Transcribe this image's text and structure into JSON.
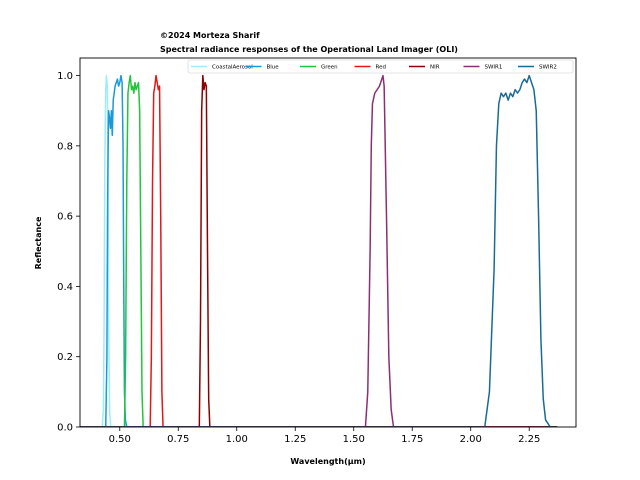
{
  "chart_data": {
    "type": "line",
    "copyright": "©2024 Morteza Sharif",
    "title": "Spectral radiance responses of the Operational Land Imager (OLI)",
    "xlabel": "Wavelength(μm)",
    "ylabel": "Reflectance",
    "xlim": [
      0.33,
      2.45
    ],
    "ylim": [
      0,
      1.05
    ],
    "xticks": [
      0.5,
      0.75,
      1.0,
      1.25,
      1.5,
      1.75,
      2.0,
      2.25
    ],
    "xtick_labels": [
      "0.50",
      "0.75",
      "1.00",
      "1.25",
      "1.50",
      "1.75",
      "2.00",
      "2.25"
    ],
    "yticks": [
      0,
      0.2,
      0.4,
      0.6,
      0.8,
      1.0
    ],
    "ytick_labels": [
      "0.0",
      "0.2",
      "0.4",
      "0.6",
      "0.8",
      "1.0"
    ],
    "grid": false,
    "legend": {
      "placement": "top",
      "columns": 7
    },
    "series": [
      {
        "name": "CoastalAerosol",
        "color": "#9eecf7",
        "x": [
          0.3,
          0.425,
          0.43,
          0.433,
          0.436,
          0.44,
          0.443,
          0.447,
          0.45,
          0.453,
          0.457,
          0.462,
          2.37
        ],
        "y": [
          0,
          0,
          0.05,
          0.3,
          0.75,
          0.96,
          1.0,
          0.97,
          0.7,
          0.25,
          0.04,
          0,
          0
        ]
      },
      {
        "name": "Blue",
        "color": "#1a9ad6",
        "x": [
          0.3,
          0.44,
          0.445,
          0.448,
          0.452,
          0.456,
          0.46,
          0.464,
          0.468,
          0.472,
          0.476,
          0.48,
          0.485,
          0.49,
          0.495,
          0.5,
          0.505,
          0.51,
          0.514,
          0.517,
          0.52,
          0.524,
          0.53,
          2.37
        ],
        "y": [
          0,
          0,
          0.2,
          0.65,
          0.9,
          0.88,
          0.85,
          0.9,
          0.83,
          0.93,
          0.95,
          0.97,
          0.98,
          0.99,
          0.97,
          0.98,
          1.0,
          0.98,
          0.8,
          0.4,
          0.1,
          0.02,
          0,
          0
        ]
      },
      {
        "name": "Green",
        "color": "#22c43a",
        "x": [
          0.3,
          0.52,
          0.525,
          0.53,
          0.535,
          0.54,
          0.545,
          0.55,
          0.555,
          0.56,
          0.565,
          0.57,
          0.575,
          0.58,
          0.585,
          0.59,
          0.595,
          0.6,
          2.37
        ],
        "y": [
          0,
          0,
          0.2,
          0.7,
          0.95,
          0.98,
          1.0,
          0.96,
          0.97,
          0.95,
          0.98,
          0.96,
          0.97,
          0.98,
          0.9,
          0.5,
          0.1,
          0,
          0
        ]
      },
      {
        "name": "Red",
        "color": "#e01818",
        "x": [
          0.3,
          0.63,
          0.635,
          0.64,
          0.645,
          0.65,
          0.655,
          0.66,
          0.665,
          0.67,
          0.675,
          0.68,
          0.685,
          2.37
        ],
        "y": [
          0,
          0,
          0.2,
          0.7,
          0.95,
          0.97,
          1.0,
          0.98,
          0.96,
          0.97,
          0.6,
          0.1,
          0,
          0
        ]
      },
      {
        "name": "NIR",
        "color": "#8b0000",
        "x": [
          0.3,
          0.84,
          0.845,
          0.85,
          0.855,
          0.86,
          0.865,
          0.87,
          0.875,
          0.88,
          0.885,
          2.37
        ],
        "y": [
          0,
          0,
          0.3,
          0.9,
          1.0,
          0.96,
          0.98,
          0.97,
          0.5,
          0.08,
          0,
          0
        ]
      },
      {
        "name": "SWIR1",
        "color": "#8b2f74",
        "x": [
          0.3,
          1.55,
          1.56,
          1.57,
          1.575,
          1.58,
          1.59,
          1.6,
          1.61,
          1.62,
          1.625,
          1.63,
          1.64,
          1.65,
          1.66,
          1.67,
          2.37
        ],
        "y": [
          0,
          0,
          0.1,
          0.5,
          0.8,
          0.92,
          0.95,
          0.96,
          0.97,
          0.99,
          1.0,
          0.97,
          0.6,
          0.2,
          0.05,
          0,
          0
        ]
      },
      {
        "name": "SWIR2",
        "color": "#1a6b94",
        "x": [
          0.3,
          2.06,
          2.08,
          2.1,
          2.11,
          2.12,
          2.13,
          2.14,
          2.15,
          2.16,
          2.17,
          2.18,
          2.19,
          2.2,
          2.21,
          2.22,
          2.23,
          2.24,
          2.25,
          2.26,
          2.27,
          2.28,
          2.29,
          2.3,
          2.31,
          2.32,
          2.34,
          2.37
        ],
        "y": [
          0,
          0,
          0.1,
          0.45,
          0.8,
          0.92,
          0.95,
          0.94,
          0.95,
          0.93,
          0.95,
          0.94,
          0.96,
          0.95,
          0.96,
          0.98,
          0.99,
          0.98,
          1.0,
          0.98,
          0.96,
          0.9,
          0.6,
          0.25,
          0.08,
          0.02,
          0,
          0
        ]
      }
    ]
  }
}
